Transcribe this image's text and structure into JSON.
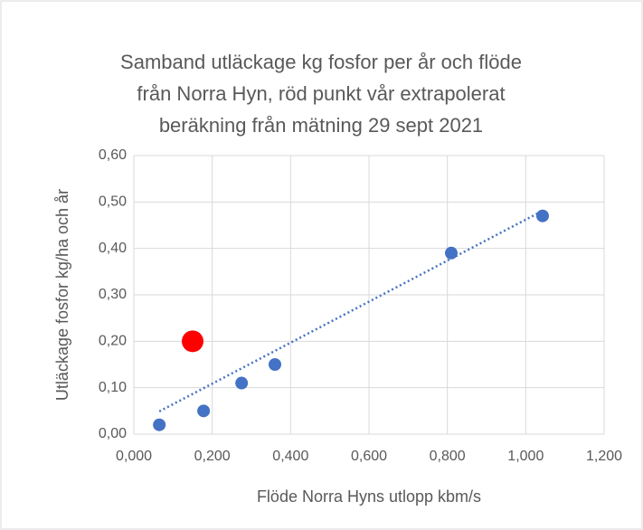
{
  "chart_data": {
    "type": "scatter",
    "title": [
      "Samband utläckage kg fosfor per år och flöde",
      "från Norra Hyn, röd punkt vår extrapolerat",
      "beräkning från mätning 29 sept 2021"
    ],
    "x_label": "Flöde Norra Hyns utlopp kbm/s",
    "y_label": "Utläckage fosfor kg/ha och år",
    "xlim": [
      0,
      1.2
    ],
    "ylim": [
      0,
      0.6
    ],
    "xticks": [
      {
        "value": 0,
        "label": "0,000"
      },
      {
        "value": 0.2,
        "label": "0,200"
      },
      {
        "value": 0.4,
        "label": "0,400"
      },
      {
        "value": 0.6,
        "label": "0,600"
      },
      {
        "value": 0.8,
        "label": "0,800"
      },
      {
        "value": 1.0,
        "label": "1,000"
      },
      {
        "value": 1.2,
        "label": "1,200"
      }
    ],
    "yticks": [
      {
        "value": 0,
        "label": "0,00"
      },
      {
        "value": 0.1,
        "label": "0,10"
      },
      {
        "value": 0.2,
        "label": "0,20"
      },
      {
        "value": 0.3,
        "label": "0,30"
      },
      {
        "value": 0.4,
        "label": "0,40"
      },
      {
        "value": 0.5,
        "label": "0,50"
      },
      {
        "value": 0.6,
        "label": "0,60"
      }
    ],
    "grid": true,
    "series": [
      {
        "color": "#4472c4",
        "size": 7,
        "x": [
          0.065,
          0.178,
          0.275,
          0.36,
          0.81,
          1.043
        ],
        "values": [
          0.02,
          0.05,
          0.11,
          0.15,
          0.39,
          0.47
        ]
      },
      {
        "color": "#ff0000",
        "size": 12,
        "x": [
          0.15
        ],
        "values": [
          0.2
        ]
      }
    ],
    "trendline": {
      "color": "#4472c4",
      "x": [
        0.065,
        1.043
      ],
      "values": [
        0.049,
        0.481
      ]
    }
  }
}
